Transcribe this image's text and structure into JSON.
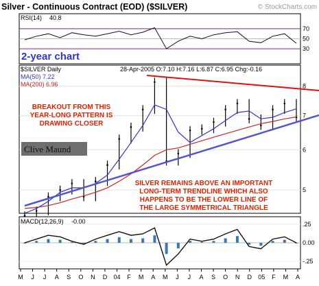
{
  "title": "Silver - Continuous Contract (EOD) ($SILVER)",
  "watermark": "© StockCharts.com",
  "rsi": {
    "label": "RSI(14)",
    "value": "40.8",
    "levels": [
      "70",
      "50",
      "30"
    ],
    "level_values": [
      70,
      50,
      30
    ]
  },
  "subtitle": "2-year chart",
  "price": {
    "symbol": "$SILVER Daily",
    "ma50": "MA(50) 7.22",
    "ma200": "MA(200) 6.96",
    "ohlc": "28-Apr-2005 O:7.10 H:7.16 L:6.87 C:6.95 Chg:-0.16",
    "y_ticks": [
      "8",
      "7",
      "6",
      "5"
    ],
    "y_tick_values": [
      8,
      7,
      6,
      5
    ]
  },
  "annotations": {
    "breakout": [
      "BREAKOUT FROM THIS",
      "YEAR-LONG PATTERN IS",
      "DRAWING CLOSER"
    ],
    "trendline": [
      "SILVER REMAINS ABOVE AN IMPORTANT",
      "LONG-TERM TRENDLINE WHICH ALSO",
      "HAPPENS TO BE THE LOWER LINE OF",
      "THE LARGE SYMMETRICAL TRIANGLE"
    ],
    "signature": "Clive Maund"
  },
  "macd": {
    "label": "MACD(12,26,9)",
    "value": "-0.00",
    "y_ticks": [
      ".25",
      "0.00",
      "-.25"
    ],
    "y_tick_values": [
      0.25,
      0,
      -0.25
    ]
  },
  "x_axis": {
    "labels": [
      "M",
      "J",
      "J",
      "A",
      "S",
      "O",
      "N",
      "D",
      "04",
      "F",
      "M",
      "A",
      "M",
      "J",
      "J",
      "A",
      "S",
      "O",
      "N",
      "D",
      "05",
      "F",
      "M",
      "A"
    ]
  },
  "colors": {
    "ma50": "#3333cc",
    "ma200": "#cc2222",
    "upper_trendline": "#dd1111",
    "lower_trendline": "#5555cc",
    "annotation_text": "#dd2200",
    "subtitle": "#3333cc",
    "macd_hist": "#3a7ab0",
    "rsi_fill": "#7a2a7a"
  },
  "chart_data": [
    {
      "type": "line",
      "name": "RSI(14)",
      "y_range": [
        0,
        100
      ],
      "levels": [
        70,
        50,
        30
      ],
      "last": 40.8,
      "x": [
        "May-03",
        "Jun-03",
        "Jul-03",
        "Aug-03",
        "Sep-03",
        "Oct-03",
        "Nov-03",
        "Dec-03",
        "Jan-04",
        "Feb-04",
        "Mar-04",
        "Apr-04",
        "May-04",
        "Jun-04",
        "Jul-04",
        "Aug-04",
        "Sep-04",
        "Oct-04",
        "Nov-04",
        "Dec-04",
        "Jan-05",
        "Feb-05",
        "Mar-05",
        "Apr-05"
      ],
      "series": [
        {
          "values": [
            48,
            55,
            60,
            52,
            62,
            58,
            55,
            60,
            65,
            58,
            63,
            72,
            30,
            45,
            55,
            50,
            58,
            62,
            64,
            45,
            42,
            55,
            60,
            41
          ]
        }
      ]
    },
    {
      "type": "line",
      "ohlc": {
        "date": "28-Apr-2005",
        "open": 7.1,
        "high": 7.16,
        "low": 6.87,
        "close": 6.95,
        "change": -0.16
      },
      "scale": "log",
      "y_range": [
        4.5,
        8.8
      ],
      "x": [
        "May-03",
        "Jun-03",
        "Jul-03",
        "Aug-03",
        "Sep-03",
        "Oct-03",
        "Nov-03",
        "Dec-03",
        "Jan-04",
        "Feb-04",
        "Mar-04",
        "Apr-04",
        "May-04",
        "Jun-04",
        "Jul-04",
        "Aug-04",
        "Sep-04",
        "Oct-04",
        "Nov-04",
        "Dec-04",
        "Jan-05",
        "Feb-05",
        "Mar-05",
        "Apr-05"
      ],
      "series": [
        {
          "name": "$SILVER Daily",
          "values": [
            4.45,
            4.55,
            4.85,
            5.0,
            5.15,
            4.85,
            5.2,
            5.6,
            6.3,
            6.65,
            7.2,
            8.15,
            5.7,
            5.9,
            6.55,
            6.6,
            6.8,
            7.2,
            7.4,
            6.9,
            6.7,
            7.2,
            7.4,
            6.95
          ]
        },
        {
          "name": "MA(50) 7.22",
          "values": [
            4.5,
            4.6,
            4.75,
            4.95,
            5.05,
            5.05,
            5.15,
            5.35,
            5.75,
            6.2,
            6.7,
            7.35,
            7.2,
            6.5,
            6.2,
            6.4,
            6.6,
            6.85,
            7.1,
            7.15,
            6.9,
            6.95,
            7.1,
            7.22
          ]
        },
        {
          "name": "MA(200) 6.96",
          "values": [
            4.6,
            4.62,
            4.66,
            4.72,
            4.8,
            4.87,
            4.95,
            5.05,
            5.2,
            5.38,
            5.6,
            5.85,
            6.0,
            6.05,
            6.15,
            6.25,
            6.35,
            6.45,
            6.55,
            6.65,
            6.75,
            6.82,
            6.9,
            6.96
          ]
        }
      ]
    },
    {
      "type": "line",
      "name": "MACD(12,26,9)",
      "y_range": [
        -0.35,
        0.35
      ],
      "last": -0.0,
      "x": [
        "May-03",
        "Jun-03",
        "Jul-03",
        "Aug-03",
        "Sep-03",
        "Oct-03",
        "Nov-03",
        "Dec-03",
        "Jan-04",
        "Feb-04",
        "Mar-04",
        "Apr-04",
        "May-04",
        "Jun-04",
        "Jul-04",
        "Aug-04",
        "Sep-04",
        "Oct-04",
        "Nov-04",
        "Dec-04",
        "Jan-05",
        "Feb-05",
        "Mar-05",
        "Apr-05"
      ],
      "series": [
        {
          "values": [
            0.0,
            0.05,
            0.1,
            0.08,
            0.02,
            -0.02,
            0.05,
            0.1,
            0.15,
            0.1,
            0.12,
            0.2,
            -0.3,
            -0.15,
            0.05,
            0.02,
            0.05,
            0.12,
            0.18,
            -0.05,
            -0.08,
            0.05,
            0.08,
            0.0
          ]
        }
      ]
    }
  ]
}
